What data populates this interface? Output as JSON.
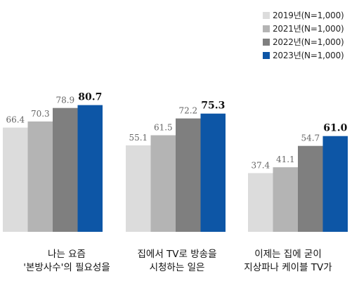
{
  "chart_data": {
    "type": "bar",
    "categories": [
      {
        "lines": [
          "나는 요즘",
          "'본방사수'의 필요성을"
        ]
      },
      {
        "lines": [
          "집에서 TV로 방송을",
          "시청하는 일은"
        ]
      },
      {
        "lines": [
          "이제는 집에 굳이",
          "지상파나 케이블 TV가"
        ]
      }
    ],
    "series": [
      {
        "name": "2019년(N=1,000)",
        "color": "#dcdcdc",
        "values": [
          66.4,
          55.1,
          37.4
        ]
      },
      {
        "name": "2021년(N=1,000)",
        "color": "#b4b4b4",
        "values": [
          70.3,
          61.5,
          41.1
        ]
      },
      {
        "name": "2022년(N=1,000)",
        "color": "#7f7f7f",
        "values": [
          78.9,
          72.2,
          54.7
        ]
      },
      {
        "name": "2023년(N=1,000)",
        "color": "#0d56a6",
        "values": [
          80.7,
          75.3,
          61.0
        ]
      }
    ],
    "value_labels": [
      [
        "66.4",
        "55.1",
        "37.4"
      ],
      [
        "70.3",
        "61.5",
        "41.1"
      ],
      [
        "78.9",
        "72.2",
        "54.7"
      ],
      [
        "80.7",
        "75.3",
        "61.0"
      ]
    ],
    "highlight_series": 3,
    "legend_position": "top-right",
    "grid": false
  }
}
